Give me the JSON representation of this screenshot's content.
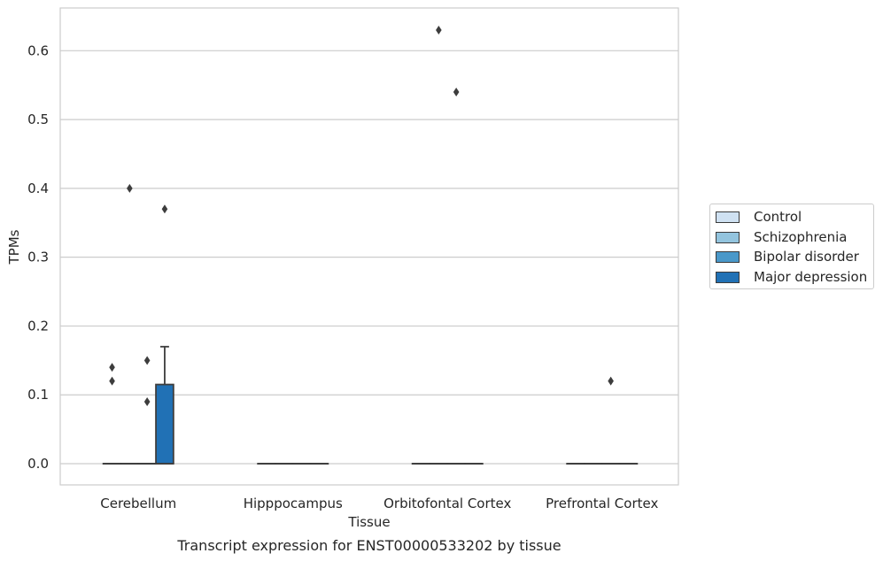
{
  "chart_data": {
    "type": "box",
    "title": "Transcript expression for ENST00000533202 by tissue",
    "xlabel": "Tissue",
    "ylabel": "TPMs",
    "categories": [
      "Cerebellum",
      "Hipppocampus",
      "Orbitofontal Cortex",
      "Prefrontal Cortex"
    ],
    "ylim": [
      -0.03,
      0.665
    ],
    "yticks": [
      0.0,
      0.1,
      0.2,
      0.3,
      0.4,
      0.5,
      0.6
    ],
    "ytick_labels": [
      "0.0",
      "0.1",
      "0.2",
      "0.3",
      "0.4",
      "0.5",
      "0.6"
    ],
    "grid": "horizontal",
    "legend_position": "right",
    "series": [
      {
        "name": "Control",
        "color": "#cfe1f2",
        "boxes": [
          {
            "q1": 0,
            "median": 0,
            "q3": 0,
            "whisker_low": 0,
            "whisker_high": 0,
            "outliers": [
              0.12,
              0.14
            ]
          },
          {
            "q1": 0,
            "median": 0,
            "q3": 0,
            "whisker_low": 0,
            "whisker_high": 0,
            "outliers": []
          },
          {
            "q1": 0,
            "median": 0,
            "q3": 0,
            "whisker_low": 0,
            "whisker_high": 0,
            "outliers": []
          },
          {
            "q1": 0,
            "median": 0,
            "q3": 0,
            "whisker_low": 0,
            "whisker_high": 0,
            "outliers": []
          }
        ]
      },
      {
        "name": "Schizophrenia",
        "color": "#93c4de",
        "boxes": [
          {
            "q1": 0,
            "median": 0,
            "q3": 0,
            "whisker_low": 0,
            "whisker_high": 0,
            "outliers": [
              0.4
            ]
          },
          {
            "q1": 0,
            "median": 0,
            "q3": 0,
            "whisker_low": 0,
            "whisker_high": 0,
            "outliers": []
          },
          {
            "q1": 0,
            "median": 0,
            "q3": 0,
            "whisker_low": 0,
            "whisker_high": 0,
            "outliers": [
              0.63
            ]
          },
          {
            "q1": 0,
            "median": 0,
            "q3": 0,
            "whisker_low": 0,
            "whisker_high": 0,
            "outliers": []
          }
        ]
      },
      {
        "name": "Bipolar disorder",
        "color": "#4a98c9",
        "boxes": [
          {
            "q1": 0,
            "median": 0,
            "q3": 0,
            "whisker_low": 0,
            "whisker_high": 0,
            "outliers": [
              0.09,
              0.15
            ]
          },
          {
            "q1": 0,
            "median": 0,
            "q3": 0,
            "whisker_low": 0,
            "whisker_high": 0,
            "outliers": []
          },
          {
            "q1": 0,
            "median": 0,
            "q3": 0,
            "whisker_low": 0,
            "whisker_high": 0,
            "outliers": [
              0.54
            ]
          },
          {
            "q1": 0,
            "median": 0,
            "q3": 0,
            "whisker_low": 0,
            "whisker_high": 0,
            "outliers": [
              0.12
            ]
          }
        ]
      },
      {
        "name": "Major depression",
        "color": "#2171b5",
        "boxes": [
          {
            "q1": 0,
            "median": 0,
            "q3": 0.115,
            "whisker_low": 0,
            "whisker_high": 0.17,
            "outliers": [
              0.37
            ]
          },
          {
            "q1": 0,
            "median": 0,
            "q3": 0,
            "whisker_low": 0,
            "whisker_high": 0,
            "outliers": []
          },
          {
            "q1": 0,
            "median": 0,
            "q3": 0,
            "whisker_low": 0,
            "whisker_high": 0,
            "outliers": []
          },
          {
            "q1": 0,
            "median": 0,
            "q3": 0,
            "whisker_low": 0,
            "whisker_high": 0,
            "outliers": []
          }
        ]
      }
    ]
  }
}
